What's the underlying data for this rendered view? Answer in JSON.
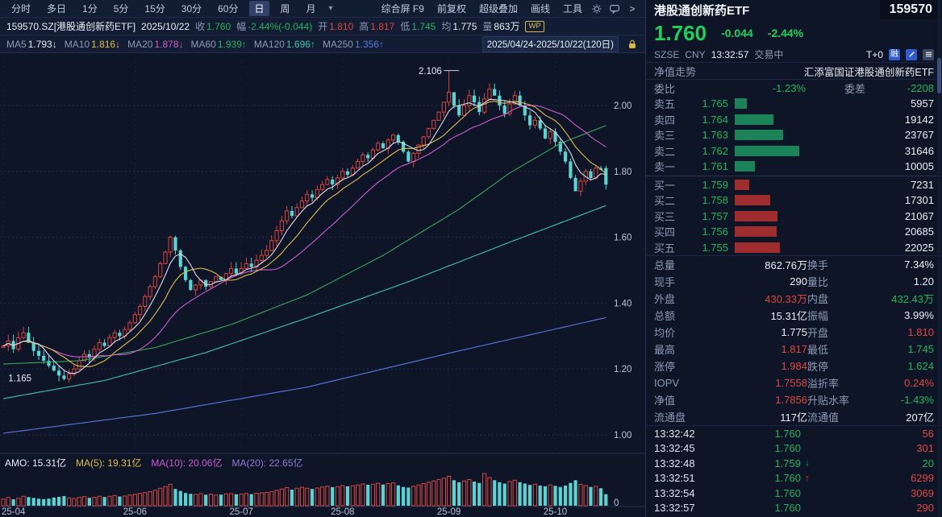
{
  "toolbar": {
    "periods": [
      "分时",
      "多日",
      "1分",
      "5分",
      "15分",
      "30分",
      "60分",
      "日",
      "周",
      "月"
    ],
    "active_period": "日",
    "right_items": [
      "综合屏 F9",
      "前复权",
      "超级叠加",
      "画线",
      "工具"
    ]
  },
  "quote_bar": {
    "symbol": "159570.SZ[港股通创新药ETF]",
    "date": "2025/10/22",
    "fields": [
      {
        "label": "收",
        "value": "1.760",
        "color": "green"
      },
      {
        "label": "幅",
        "value": "-2.44%(-0.044)",
        "color": "green"
      },
      {
        "label": "开",
        "value": "1.810",
        "color": "red"
      },
      {
        "label": "高",
        "value": "1.817",
        "color": "red"
      },
      {
        "label": "低",
        "value": "1.745",
        "color": "green"
      },
      {
        "label": "均",
        "value": "1.775",
        "color": "white"
      },
      {
        "label": "量",
        "value": "863万",
        "color": "white"
      }
    ],
    "badge": "WP"
  },
  "ma_bar": {
    "items": [
      {
        "label": "MA5",
        "value": "1.793",
        "arrow": "↓",
        "color": "white"
      },
      {
        "label": "MA10",
        "value": "1.816",
        "arrow": "↓",
        "color": "yellow"
      },
      {
        "label": "MA20",
        "value": "1.878",
        "arrow": "↓",
        "color": "magenta"
      },
      {
        "label": "MA60",
        "value": "1.939",
        "arrow": "↑",
        "color": "green"
      },
      {
        "label": "MA120",
        "value": "1.696",
        "arrow": "↑",
        "color": "cyan"
      },
      {
        "label": "MA250",
        "value": "1.356",
        "arrow": "↑",
        "color": "blue"
      }
    ],
    "date_range": "2025/04/24-2025/10/22(120日)"
  },
  "amo_bar": {
    "items": [
      {
        "label": "AMO:",
        "value": "15.31亿",
        "color": "white"
      },
      {
        "label": "MA(5):",
        "value": "19.31亿",
        "color": "yellow"
      },
      {
        "label": "MA(10):",
        "value": "20.06亿",
        "color": "magenta"
      },
      {
        "label": "MA(20):",
        "value": "22.65亿",
        "color": "violet"
      }
    ]
  },
  "chart_data": {
    "type": "candlestick",
    "title": "港股通创新药ETF 159570.SZ 日K",
    "period": "日",
    "date_range": "2025/04/24-2025/10/22",
    "days": 120,
    "first_open": 1.265,
    "closes": [
      1.27,
      1.285,
      1.26,
      1.295,
      1.31,
      1.28,
      1.255,
      1.24,
      1.225,
      1.21,
      1.195,
      1.18,
      1.17,
      1.185,
      1.2,
      1.225,
      1.245,
      1.235,
      1.26,
      1.28,
      1.27,
      1.295,
      1.31,
      1.3,
      1.32,
      1.34,
      1.365,
      1.39,
      1.42,
      1.45,
      1.48,
      1.52,
      1.555,
      1.6,
      1.56,
      1.51,
      1.47,
      1.44,
      1.455,
      1.47,
      1.45,
      1.465,
      1.48,
      1.47,
      1.49,
      1.505,
      1.49,
      1.505,
      1.52,
      1.51,
      1.53,
      1.545,
      1.56,
      1.59,
      1.62,
      1.65,
      1.68,
      1.665,
      1.69,
      1.71,
      1.73,
      1.72,
      1.745,
      1.76,
      1.775,
      1.76,
      1.78,
      1.8,
      1.79,
      1.81,
      1.83,
      1.85,
      1.84,
      1.865,
      1.885,
      1.87,
      1.895,
      1.91,
      1.89,
      1.86,
      1.83,
      1.855,
      1.88,
      1.905,
      1.93,
      1.955,
      1.98,
      2.01,
      2.04,
      2.0,
      1.97,
      2.0,
      2.03,
      2.01,
      1.98,
      2.02,
      2.05,
      2.03,
      2.0,
      1.975,
      2.005,
      2.03,
      2.0,
      1.97,
      1.94,
      1.955,
      1.93,
      1.9,
      1.92,
      1.89,
      1.86,
      1.83,
      1.78,
      1.74,
      1.77,
      1.8,
      1.78,
      1.81,
      1.805,
      1.76
    ],
    "volumes": [
      500,
      620,
      480,
      550,
      700,
      640,
      580,
      520,
      490,
      530,
      610,
      660,
      720,
      580,
      540,
      620,
      680,
      590,
      630,
      710,
      650,
      700,
      760,
      690,
      720,
      800,
      860,
      920,
      980,
      1050,
      1150,
      1300,
      1420,
      1600,
      1250,
      1100,
      950,
      880,
      840,
      900,
      820,
      860,
      790,
      830,
      880,
      900,
      850,
      870,
      910,
      860,
      930,
      960,
      990,
      1050,
      1150,
      1250,
      1350,
      1200,
      1300,
      1380,
      1300,
      1250,
      1320,
      1400,
      1450,
      1380,
      1420,
      1500,
      1440,
      1480,
      1550,
      1620,
      1560,
      1600,
      1680,
      1580,
      1650,
      1700,
      1520,
      1400,
      1350,
      1450,
      1550,
      1650,
      1750,
      1850,
      1950,
      2050,
      2200,
      1900,
      1750,
      1850,
      1950,
      1800,
      1700,
      2400,
      2100,
      1900,
      1750,
      1650,
      1800,
      1900,
      1750,
      1650,
      1550,
      1600,
      1500,
      1450,
      1550,
      1480,
      1400,
      1500,
      1700,
      1900,
      1600,
      1500,
      1400,
      1450,
      1300,
      863
    ],
    "overrides": {
      "12": {
        "low": 1.165
      },
      "88": {
        "high": 2.106
      },
      "119": {
        "open": 1.81,
        "high": 1.817,
        "low": 1.745,
        "close": 1.76
      }
    },
    "ma_control_points": {
      "ma60": [
        [
          0,
          1.215
        ],
        [
          15,
          1.225
        ],
        [
          30,
          1.265
        ],
        [
          45,
          1.335
        ],
        [
          60,
          1.425
        ],
        [
          75,
          1.545
        ],
        [
          90,
          1.685
        ],
        [
          100,
          1.795
        ],
        [
          110,
          1.885
        ],
        [
          119,
          1.939
        ]
      ],
      "ma120": [
        [
          0,
          1.11
        ],
        [
          20,
          1.165
        ],
        [
          40,
          1.25
        ],
        [
          60,
          1.355
        ],
        [
          80,
          1.465
        ],
        [
          100,
          1.585
        ],
        [
          119,
          1.696
        ]
      ],
      "ma250": [
        [
          0,
          1.005
        ],
        [
          30,
          1.065
        ],
        [
          60,
          1.145
        ],
        [
          90,
          1.255
        ],
        [
          119,
          1.356
        ]
      ]
    },
    "ma_colors": {
      "ma5": "#d8dde8",
      "ma10": "#e3bd4e",
      "ma20": "#cf5ccf",
      "ma60": "#3aa858",
      "ma120": "#3fc1ae",
      "ma250": "#5a78dd"
    },
    "y_axis": [
      "2.00",
      "1.80",
      "1.60",
      "1.40",
      "1.20",
      "1.00"
    ],
    "x_axis": [
      {
        "label": "25-04",
        "day": 0
      },
      {
        "label": "25-06",
        "day": 26
      },
      {
        "label": "25-07",
        "day": 47
      },
      {
        "label": "25-08",
        "day": 67
      },
      {
        "label": "25-09",
        "day": 88
      },
      {
        "label": "25-10",
        "day": 109
      }
    ],
    "annotations": [
      {
        "text": "2.106",
        "day": 82,
        "price": 2.095,
        "anchor": "start",
        "line": {
          "d1": 87,
          "d2": 90,
          "p": 2.106
        }
      },
      {
        "text": "1.165",
        "day": 1,
        "price": 1.163,
        "anchor": "start"
      }
    ],
    "volume_zero_label": "0",
    "up_color": "#d9453c",
    "down_color": "#57d4d4"
  },
  "panel": {
    "name": "港股通创新药ETF",
    "code": "159570",
    "price": "1.760",
    "change": "-0.044",
    "change_pct": "-2.44%",
    "exchange": "SZSE",
    "currency": "CNY",
    "time": "13:32:57",
    "status": "交易中",
    "tplus": "T+0",
    "margin_badge": "融",
    "nav_label": "净值走势",
    "fund_name": "汇添富国证港股通创新药ETF",
    "weibi_label": "委比",
    "weibi": "-1.23%",
    "weicha_label": "委差",
    "weicha": "-2208",
    "asks": [
      {
        "label": "卖五",
        "price": "1.765",
        "vol": "5957",
        "v": 5957
      },
      {
        "label": "卖四",
        "price": "1.764",
        "vol": "19142",
        "v": 19142
      },
      {
        "label": "卖三",
        "price": "1.763",
        "vol": "23767",
        "v": 23767
      },
      {
        "label": "卖二",
        "price": "1.762",
        "vol": "31646",
        "v": 31646
      },
      {
        "label": "卖一",
        "price": "1.761",
        "vol": "10005",
        "v": 10005
      }
    ],
    "bids": [
      {
        "label": "买一",
        "price": "1.759",
        "vol": "7231",
        "v": 7231
      },
      {
        "label": "买二",
        "price": "1.758",
        "vol": "17301",
        "v": 17301
      },
      {
        "label": "买三",
        "price": "1.757",
        "vol": "21067",
        "v": 21067
      },
      {
        "label": "买四",
        "price": "1.756",
        "vol": "20685",
        "v": 20685
      },
      {
        "label": "买五",
        "price": "1.755",
        "vol": "22025",
        "v": 22025
      }
    ],
    "stats": [
      [
        {
          "l": "总量",
          "v": "862.76万",
          "c": "white"
        },
        {
          "l": "换手",
          "v": "7.34%",
          "c": "white"
        }
      ],
      [
        {
          "l": "现手",
          "v": "290",
          "c": "white"
        },
        {
          "l": "量比",
          "v": "1.20",
          "c": "white"
        }
      ],
      [
        {
          "l": "外盘",
          "v": "430.33万",
          "c": "red"
        },
        {
          "l": "内盘",
          "v": "432.43万",
          "c": "green"
        }
      ],
      [
        {
          "l": "总额",
          "v": "15.31亿",
          "c": "white"
        },
        {
          "l": "振幅",
          "v": "3.99%",
          "c": "white"
        }
      ],
      [
        {
          "l": "均价",
          "v": "1.775",
          "c": "white"
        },
        {
          "l": "开盘",
          "v": "1.810",
          "c": "red"
        }
      ],
      [
        {
          "l": "最高",
          "v": "1.817",
          "c": "red"
        },
        {
          "l": "最低",
          "v": "1.745",
          "c": "green"
        }
      ],
      [
        {
          "l": "涨停",
          "v": "1.984",
          "c": "red"
        },
        {
          "l": "跌停",
          "v": "1.624",
          "c": "green"
        }
      ],
      [
        {
          "l": "IOPV",
          "v": "1.7558",
          "c": "red"
        },
        {
          "l": "溢折率",
          "v": "0.24%",
          "c": "red"
        }
      ],
      [
        {
          "l": "净值",
          "v": "1.7856",
          "c": "red"
        },
        {
          "l": "升贴水率",
          "v": "-1.43%",
          "c": "green"
        }
      ],
      [
        {
          "l": "流通盘",
          "v": "117亿",
          "c": "white"
        },
        {
          "l": "流通值",
          "v": "207亿",
          "c": "white"
        }
      ]
    ],
    "ticks": [
      {
        "time": "13:32:42",
        "price": "1.760",
        "arrow": "",
        "ac": "",
        "vol": "56",
        "vc": "red"
      },
      {
        "time": "13:32:45",
        "price": "1.760",
        "arrow": "",
        "ac": "",
        "vol": "301",
        "vc": "red"
      },
      {
        "time": "13:32:48",
        "price": "1.759",
        "arrow": "↓",
        "ac": "green",
        "vol": "20",
        "vc": "green"
      },
      {
        "time": "13:32:51",
        "price": "1.760",
        "arrow": "↑",
        "ac": "red",
        "vol": "6299",
        "vc": "red"
      },
      {
        "time": "13:32:54",
        "price": "1.760",
        "arrow": "",
        "ac": "",
        "vol": "3069",
        "vc": "red"
      },
      {
        "time": "13:32:57",
        "price": "1.760",
        "arrow": "",
        "ac": "",
        "vol": "290",
        "vc": "red"
      }
    ]
  }
}
